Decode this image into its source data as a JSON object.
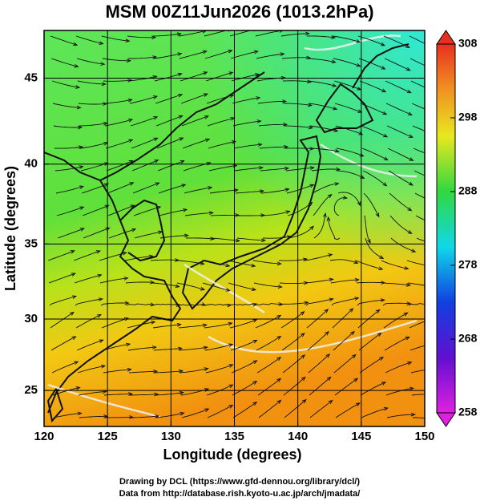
{
  "title": "MSM 00Z11Jun2026 (1013.2hPa)",
  "x_axis": {
    "label": "Longitude (degrees)",
    "lim": [
      120,
      150
    ],
    "ticks": [
      120,
      125,
      130,
      135,
      140,
      145,
      150
    ]
  },
  "y_axis": {
    "label": "Latitude  (degrees)",
    "lim": [
      22.4,
      47.6
    ],
    "ticks": [
      25,
      30,
      35,
      40,
      45
    ],
    "projection": "mercator"
  },
  "colorbar": {
    "lim": [
      258,
      308
    ],
    "ticks": [
      258,
      268,
      278,
      288,
      298,
      308
    ]
  },
  "credits": [
    "Drawing by DCL (https://www.gfd-dennou.org/library/dcl/)",
    "Data from http://database.rish.kyoto-u.ac.jp/arch/jmadata/"
  ]
}
